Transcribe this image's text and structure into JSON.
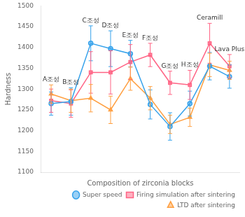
{
  "chart_data": {
    "type": "line",
    "xlabel": "Composition of zirconia blocks",
    "ylabel": "Hardness",
    "categories": [
      "A조성",
      "B조성",
      "C조성",
      "D조성",
      "E조성",
      "F조성",
      "G조성",
      "H조성",
      "Ceramill",
      "Lava Plus"
    ],
    "series": [
      {
        "name": "Super speed",
        "marker": "circle",
        "values": [
          1265,
          1270,
          1410,
          1397,
          1385,
          1263,
          1210,
          1265,
          1355,
          1330
        ],
        "errors": [
          28,
          33,
          42,
          43,
          32,
          35,
          33,
          30,
          33,
          28
        ]
      },
      {
        "name": "Firing simulation after sintering",
        "marker": "square",
        "values": [
          1272,
          1265,
          1340,
          1340,
          1365,
          1382,
          1315,
          1310,
          1410,
          1355
        ],
        "errors": [
          28,
          33,
          50,
          52,
          42,
          28,
          28,
          35,
          48,
          28
        ]
      },
      {
        "name": "LTD after sintering",
        "marker": "triangle",
        "values": [
          1288,
          1272,
          1278,
          1250,
          1325,
          1278,
          1215,
          1232,
          1358,
          1345
        ],
        "errors": [
          22,
          28,
          33,
          33,
          28,
          28,
          22,
          22,
          28,
          22
        ]
      }
    ],
    "ylim": [
      1100,
      1500
    ],
    "yticks": [
      1100,
      1150,
      1200,
      1250,
      1300,
      1350,
      1400,
      1450,
      1500
    ],
    "grid": false,
    "legend": "lower right",
    "tick_labels": "y",
    "annotations": [
      {
        "text": "A조성",
        "x": "A조성"
      },
      {
        "text": "B조성",
        "x": "B조성"
      },
      {
        "text": "C조성",
        "x": "C조성"
      },
      {
        "text": "D조성",
        "x": "D조성"
      },
      {
        "text": "E조성",
        "x": "E조성"
      },
      {
        "text": "F조성",
        "x": "F조성"
      },
      {
        "text": "G조성",
        "x": "G조성"
      },
      {
        "text": "H조성",
        "x": "H조성"
      },
      {
        "text": "Ceramill",
        "x": "Ceramill"
      },
      {
        "text": "Lava Plus",
        "x": "Lava Plus"
      }
    ]
  }
}
